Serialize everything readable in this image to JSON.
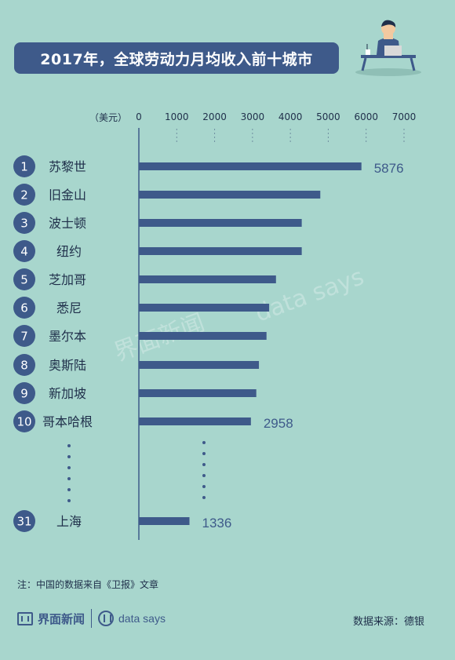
{
  "title": "2017年，全球劳动力月均收入前十城市",
  "unit": "（美元）",
  "chart_data": {
    "type": "bar",
    "orientation": "horizontal",
    "title": "2017年，全球劳动力月均收入前十城市",
    "unit": "（美元）",
    "xlim": [
      0,
      7000
    ],
    "ticks": [
      "0",
      "1000",
      "2000",
      "3000",
      "4000",
      "5000",
      "6000",
      "7000"
    ],
    "ranks": [
      "1",
      "2",
      "3",
      "4",
      "5",
      "6",
      "7",
      "8",
      "9",
      "10",
      "31"
    ],
    "categories": [
      "苏黎世",
      "旧金山",
      "波士顿",
      "纽约",
      "芝加哥",
      "悉尼",
      "墨尔本",
      "奥斯陆",
      "新加坡",
      "哥本哈根",
      "上海"
    ],
    "values": [
      5876,
      4790,
      4300,
      4300,
      3620,
      3440,
      3370,
      3170,
      3100,
      2958,
      1336
    ],
    "value_labels": [
      "5876",
      "",
      "",
      "",
      "",
      "",
      "",
      "",
      "",
      "2958",
      "1336"
    ],
    "grid": "dotted vertical",
    "colors": {
      "bar": "#3e5a8a",
      "background": "#a8d6cd",
      "rank_circle": "#3e5a8a"
    }
  },
  "watermarks": [
    "界面新闻",
    "data says"
  ],
  "footer": {
    "note": "注：中国的数据来自《卫报》文章",
    "brand": "界面新闻",
    "brand2": "data says",
    "source": "数据来源：德银"
  },
  "icons": [
    "person-at-laptop-icon",
    "jiemian-logo-icon",
    "data-says-logo-icon"
  ]
}
